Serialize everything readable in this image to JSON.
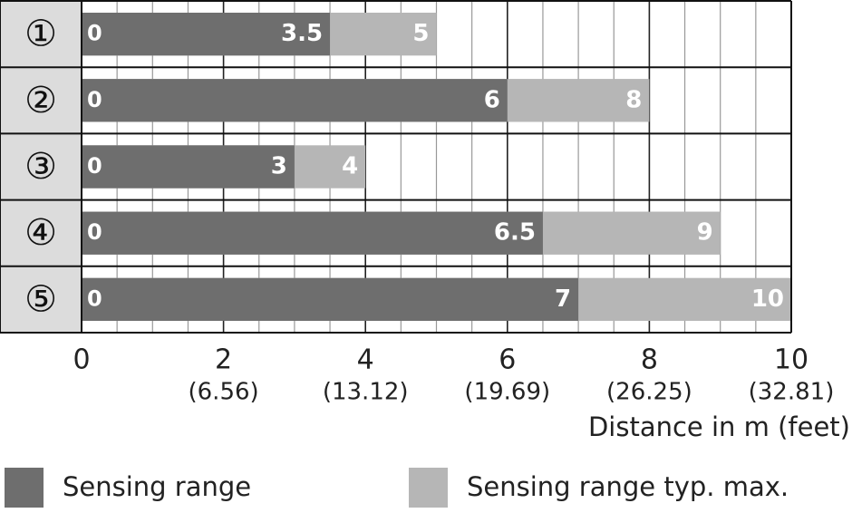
{
  "chart_data": {
    "type": "range_bar",
    "categories": [
      "①",
      "②",
      "③",
      "④",
      "⑤"
    ],
    "range_start": [
      0,
      0,
      0,
      0,
      0
    ],
    "series": [
      {
        "name": "Sensing range",
        "color": "#6e6e6e",
        "values": [
          3.5,
          6,
          3,
          6.5,
          7
        ]
      },
      {
        "name": "Sensing range typ. max.",
        "color": "#b6b6b6",
        "values": [
          5,
          8,
          4,
          9,
          10
        ]
      }
    ],
    "xlim": [
      0,
      10
    ],
    "xticks": [
      0,
      2,
      4,
      6,
      8,
      10
    ],
    "xtick_sublabels": [
      null,
      "(6.56)",
      "(13.12)",
      "(19.69)",
      "(26.25)",
      "(32.81)"
    ],
    "xgrid": [
      0,
      0.5,
      1,
      1.5,
      2,
      2.5,
      3,
      3.5,
      4,
      4.5,
      5,
      5.5,
      6,
      6.5,
      7,
      7.5,
      8,
      8.5,
      9,
      9.5,
      10
    ],
    "xlabel": "Distance in m (feet)"
  }
}
